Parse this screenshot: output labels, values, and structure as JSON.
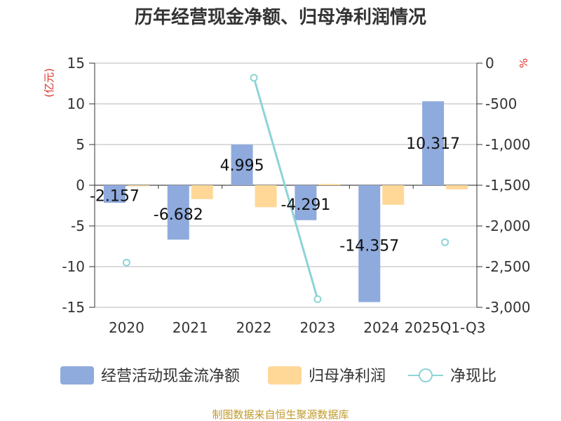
{
  "chart_data": {
    "type": "bar",
    "title": "历年经营现金净额、归母净利润情况",
    "categories": [
      "2020",
      "2021",
      "2022",
      "2023",
      "2024",
      "2025Q1-Q3"
    ],
    "left_axis": {
      "unit": "(亿元)",
      "ticks": [
        "15",
        "10",
        "5",
        "0",
        "-5",
        "-10",
        "-15"
      ],
      "ylim": [
        -15,
        15
      ]
    },
    "right_axis": {
      "unit": "%",
      "ticks": [
        "0",
        "-500",
        "-1,000",
        "-1,500",
        "-2,000",
        "-2,500",
        "-3,000"
      ],
      "ylim": [
        -3000,
        0
      ]
    },
    "series": [
      {
        "name": "经营活动现金流净额",
        "kind": "bar",
        "axis": "left",
        "color": "#8faadc",
        "values": [
          -2.157,
          -6.682,
          4.995,
          -4.291,
          -14.357,
          10.317
        ],
        "labels": [
          "-2.157",
          "-6.682",
          "4.995",
          "-4.291",
          "-14.357",
          "10.317"
        ]
      },
      {
        "name": "归母净利润",
        "kind": "bar",
        "axis": "left",
        "color": "#ffd797",
        "values": [
          -0.1,
          -1.7,
          -2.7,
          0.15,
          -2.4,
          -0.5
        ]
      },
      {
        "name": "净现比",
        "kind": "line",
        "axis": "right",
        "color": "#8dd3d7",
        "values": [
          -2450,
          null,
          -180,
          -2900,
          null,
          -2200
        ]
      }
    ],
    "grid": true,
    "legend_position": "bottom"
  },
  "source": "制图数据来自恒生聚源数据库"
}
